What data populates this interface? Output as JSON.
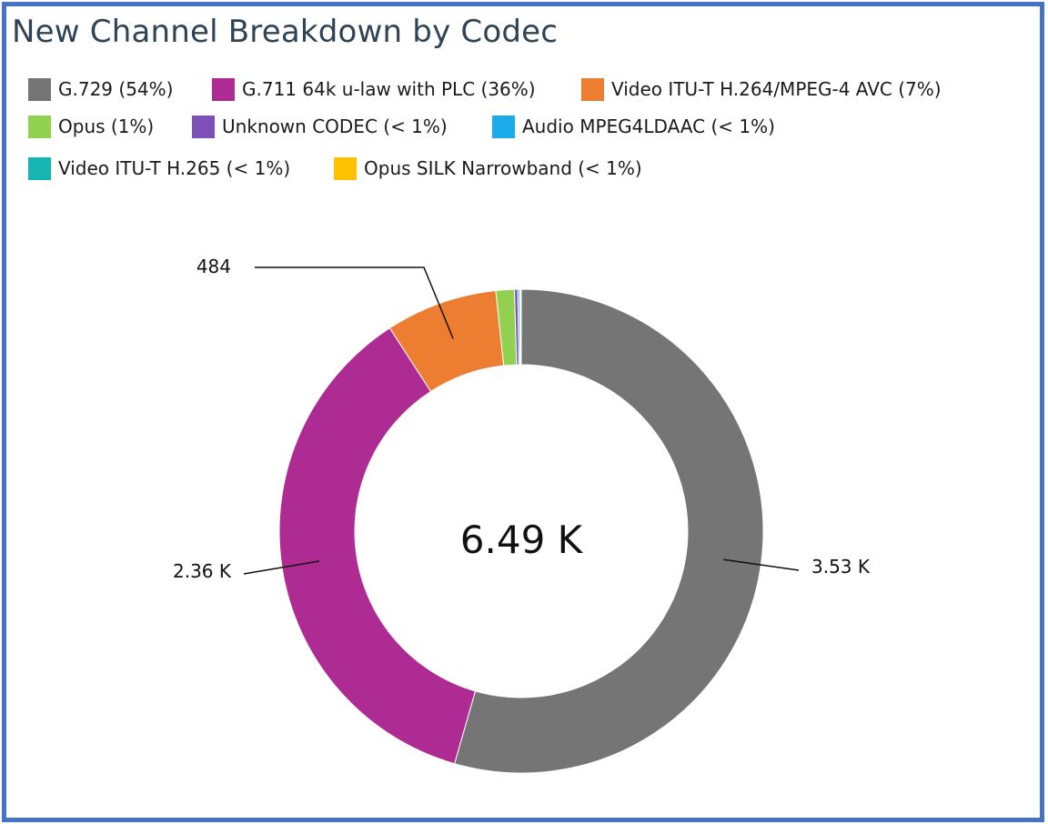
{
  "title": "New Channel Breakdown by Codec",
  "legend": [
    {
      "label": "G.729 (54%)",
      "color": "#757575"
    },
    {
      "label": "G.711 64k u-law with PLC (36%)",
      "color": "#ad2b93"
    },
    {
      "label": "Video ITU-T H.264/MPEG-4 AVC (7%)",
      "color": "#ed7d31"
    },
    {
      "label": "Opus (1%)",
      "color": "#92d050"
    },
    {
      "label": "Unknown CODEC (< 1%)",
      "color": "#7f4fb8"
    },
    {
      "label": "Audio MPEG4LDAAC (< 1%)",
      "color": "#1aabe8"
    },
    {
      "label": "Video ITU-T H.265 (< 1%)",
      "color": "#17b5b2"
    },
    {
      "label": "Opus SILK Narrowband (< 1%)",
      "color": "#ffc000"
    }
  ],
  "chart_data": {
    "type": "pie",
    "variant": "donut",
    "title": "New Channel Breakdown by Codec",
    "total_label": "6.49 K",
    "total": 6490,
    "slices": [
      {
        "name": "G.729",
        "value": 3530,
        "percent": "54%",
        "color": "#757575",
        "label": "3.53 K"
      },
      {
        "name": "G.711 64k u-law with PLC",
        "value": 2360,
        "percent": "36%",
        "color": "#ad2b93",
        "label": "2.36 K"
      },
      {
        "name": "Video ITU-T H.264/MPEG-4 AVC",
        "value": 484,
        "percent": "7%",
        "color": "#ed7d31",
        "label": "484"
      },
      {
        "name": "Opus",
        "value": 80,
        "percent": "1%",
        "color": "#92d050",
        "label": ""
      },
      {
        "name": "Unknown CODEC",
        "value": 14,
        "percent": "< 1%",
        "color": "#7f4fb8",
        "label": ""
      },
      {
        "name": "Audio MPEG4LDAAC",
        "value": 8,
        "percent": "< 1%",
        "color": "#1aabe8",
        "label": ""
      },
      {
        "name": "Video ITU-T H.265",
        "value": 4,
        "percent": "< 1%",
        "color": "#17b5b2",
        "label": ""
      },
      {
        "name": "Opus SILK Narrowband",
        "value": 3,
        "percent": "< 1%",
        "color": "#ffc000",
        "label": ""
      }
    ],
    "legend_position": "top-left"
  }
}
